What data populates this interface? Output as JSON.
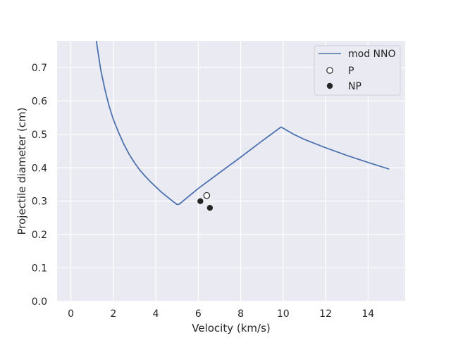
{
  "chart_data": {
    "type": "line",
    "title": "",
    "xlabel": "Velocity (km/s)",
    "ylabel": "Projectile diameter (cm)",
    "xlim": [
      -0.65,
      15.75
    ],
    "ylim": [
      0.0,
      0.78
    ],
    "xticks": [
      0,
      2,
      4,
      6,
      8,
      10,
      12,
      14
    ],
    "yticks": [
      0.0,
      0.1,
      0.2,
      0.3,
      0.4,
      0.5,
      0.6,
      0.7
    ],
    "xtick_labels": [
      "0",
      "2",
      "4",
      "6",
      "8",
      "10",
      "12",
      "14"
    ],
    "ytick_labels": [
      "0.0",
      "0.1",
      "0.2",
      "0.3",
      "0.4",
      "0.5",
      "0.6",
      "0.7"
    ],
    "grid": true,
    "legend_position": "top-right",
    "colors": {
      "background": "#eaeaf2",
      "grid": "#ffffff",
      "line": "#4c72b0",
      "marker": "#262626"
    },
    "series": [
      {
        "name": "mod NNO",
        "kind": "line",
        "x": [
          1.2,
          1.4,
          1.6,
          1.8,
          2.0,
          2.25,
          2.5,
          2.75,
          3.0,
          3.25,
          3.5,
          3.75,
          4.0,
          4.25,
          4.5,
          4.75,
          5.0,
          5.1,
          6.0,
          7.0,
          8.0,
          9.0,
          9.9,
          10.5,
          11.0,
          12.0,
          13.0,
          14.0,
          15.0
        ],
        "y": [
          0.78,
          0.695,
          0.635,
          0.585,
          0.545,
          0.505,
          0.47,
          0.44,
          0.415,
          0.393,
          0.375,
          0.358,
          0.343,
          0.328,
          0.315,
          0.302,
          0.29,
          0.291,
          0.338,
          0.385,
          0.432,
          0.48,
          0.522,
          0.5,
          0.485,
          0.46,
          0.437,
          0.416,
          0.396
        ]
      },
      {
        "name": "P",
        "kind": "scatter",
        "marker": "open-circle",
        "x": [
          6.4
        ],
        "y": [
          0.317
        ]
      },
      {
        "name": "NP",
        "kind": "scatter",
        "marker": "filled-circle",
        "x": [
          6.1,
          6.55
        ],
        "y": [
          0.3,
          0.28
        ]
      }
    ]
  }
}
